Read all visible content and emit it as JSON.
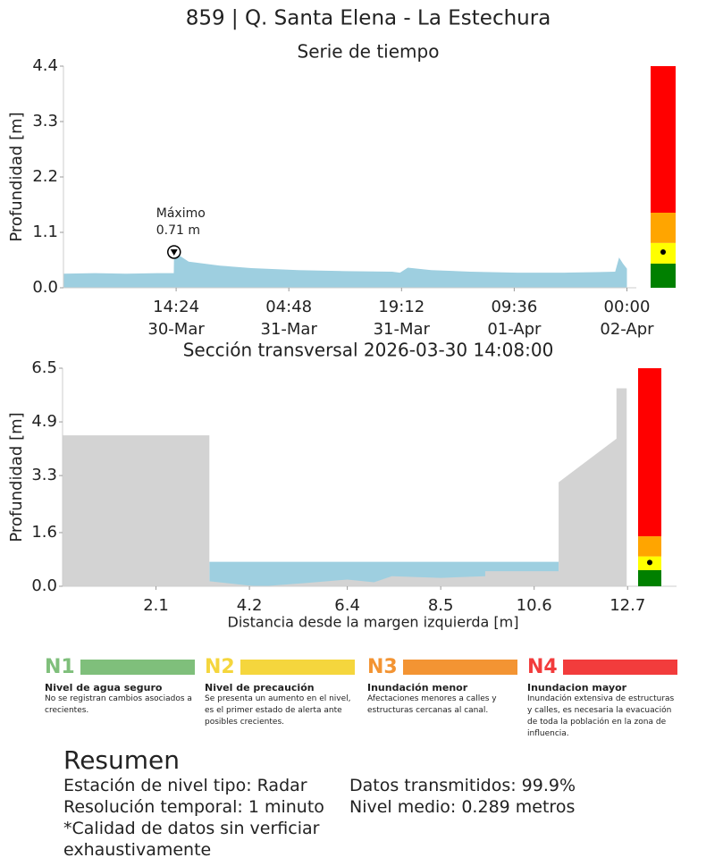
{
  "title": "859 | Q. Santa Elena - La Estechura",
  "chart_data": [
    {
      "type": "area",
      "title": "Serie de tiempo",
      "y_label": "Profundidad [m]",
      "series": [
        {
          "color": "#9ecfe0",
          "x": [
            "30-Mar 00:00",
            "30-Mar 04:00",
            "30-Mar 08:00",
            "30-Mar 12:00",
            "30-Mar 14:06",
            "30-Mar 14:08",
            "30-Mar 16:00",
            "30-Mar 20:00",
            "31-Mar 00:00",
            "31-Mar 06:00",
            "31-Mar 12:00",
            "31-Mar 18:00",
            "31-Mar 19:00",
            "31-Mar 20:00",
            "31-Mar 23:00",
            "01-Apr 04:00",
            "01-Apr 10:00",
            "01-Apr 16:00",
            "01-Apr 20:00",
            "01-Apr 22:30",
            "01-Apr 23:00",
            "01-Apr 23:30",
            "02-Apr 00:00"
          ],
          "values": [
            0.28,
            0.29,
            0.28,
            0.29,
            0.29,
            0.71,
            0.52,
            0.44,
            0.39,
            0.35,
            0.33,
            0.32,
            0.3,
            0.4,
            0.35,
            0.32,
            0.3,
            0.3,
            0.31,
            0.32,
            0.6,
            0.48,
            0.38
          ]
        }
      ],
      "xlim": [
        "30-Mar 00:00",
        "02-Apr 01:12"
      ],
      "xticks": [
        {
          "value": "30-Mar 14:24",
          "label": "14:24\n30-Mar"
        },
        {
          "value": "31-Mar 04:48",
          "label": "04:48\n31-Mar"
        },
        {
          "value": "31-Mar 19:12",
          "label": "19:12\n31-Mar"
        },
        {
          "value": "01-Apr 09:36",
          "label": "09:36\n01-Apr"
        },
        {
          "value": "02-Apr 00:00",
          "label": "00:00\n02-Apr"
        }
      ],
      "ylim": [
        0,
        4.4
      ],
      "yticks": [
        {
          "value": 0,
          "label": "0.0"
        },
        1.1,
        2.2,
        3.3,
        4.4
      ],
      "annotation": {
        "text": "Máximo",
        "value_label": "0.71 m",
        "x": "30-Mar 14:08",
        "y": 0.71
      },
      "alert_levels": [
        {
          "color": "#008000",
          "value": 0.48
        },
        {
          "color": "#ffff00",
          "value": 0.41
        },
        {
          "color": "#ffa500",
          "value": 0.6
        },
        {
          "color": "#ff0000",
          "value": 2.91
        }
      ],
      "alert_marker": 0.71
    },
    {
      "type": "area",
      "title": "Sección transversal 2026-03-30 14:08:00",
      "y_label": "Profundidad [m]",
      "x_label": "Distancia desde la margen izquierda [m]",
      "series": [
        {
          "color": "#9ecfe0",
          "x": [
            3.3,
            11.15
          ],
          "values": [
            0.73,
            0.73
          ]
        },
        {
          "color": "#d3d3d3",
          "x": [
            0,
            3.3,
            3.3,
            4.2,
            4.5,
            5.5,
            6.4,
            7.0,
            7.4,
            8.5,
            9.5,
            9.5,
            11.15,
            11.15,
            12.45,
            12.45,
            12.68,
            12.68
          ],
          "values": [
            4.5,
            4.5,
            0.15,
            0.02,
            0,
            0.1,
            0.2,
            0.12,
            0.3,
            0.25,
            0.3,
            0.45,
            0.45,
            3.1,
            4.4,
            5.9,
            5.9,
            0
          ]
        }
      ],
      "xlim": [
        0,
        13.8
      ],
      "xticks": [
        2.1,
        4.2,
        6.4,
        8.5,
        10.6,
        12.7
      ],
      "ylim": [
        0,
        6.5
      ],
      "yticks": [
        {
          "value": 0,
          "label": "0.0"
        },
        1.6,
        3.3,
        4.9,
        6.5
      ],
      "alert_levels": [
        {
          "color": "#008000",
          "value": 0.48
        },
        {
          "color": "#ffff00",
          "value": 0.41
        },
        {
          "color": "#ffa500",
          "value": 0.6
        },
        {
          "color": "#ff0000",
          "value": 5.01
        }
      ],
      "alert_marker": 0.71
    }
  ],
  "levels": [
    {
      "code": "N1",
      "color": "#7fbf7b",
      "name": "Nivel de agua seguro",
      "description": "No se registran cambios asociados a crecientes."
    },
    {
      "code": "N2",
      "color": "#f5d63d",
      "name": "Nivel de precaución",
      "description": "Se presenta un aumento en el nivel, es el primer estado de alerta ante posibles crecientes."
    },
    {
      "code": "N3",
      "color": "#f39433",
      "name": "Inundación menor",
      "description": "Afectaciones menores a calles y estructuras cercanas al canal."
    },
    {
      "code": "N4",
      "color": "#f23c3c",
      "name": "Inundacion mayor",
      "description": "Inundación extensiva de estructuras y calles, es necesaria la evacuación de toda la población en la zona de influencia."
    }
  ],
  "summary": {
    "title": "Resumen",
    "left": [
      "Estación de nivel tipo: Radar",
      "Resolución temporal: 1 minuto",
      "*Calidad de datos sin verficiar exhaustivamente"
    ],
    "right": [
      "Datos transmitidos: 99.9%",
      "Nivel medio: 0.289 metros"
    ]
  }
}
